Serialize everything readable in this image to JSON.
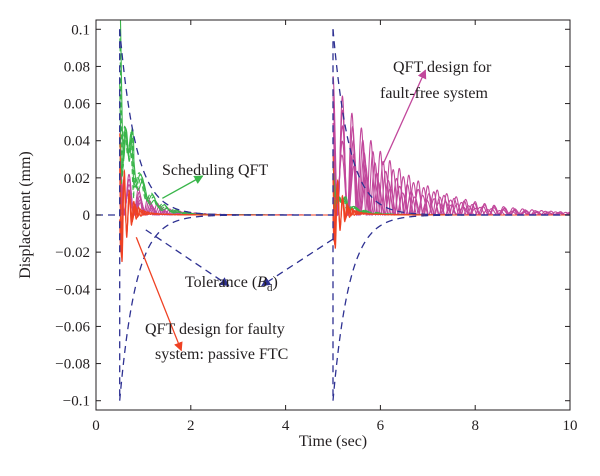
{
  "chart_data": {
    "type": "line",
    "xlabel": "Time (sec)",
    "ylabel": "Displacement (mm)",
    "xlim": [
      0,
      10
    ],
    "ylim": [
      -0.105,
      0.105
    ],
    "xticks": [
      0,
      2,
      4,
      6,
      8,
      10
    ],
    "yticks": [
      0.1,
      0.08,
      0.06,
      0.04,
      0.02,
      0,
      -0.02,
      -0.04,
      -0.06,
      -0.08,
      -0.1
    ],
    "xtick_labels": [
      "0",
      "2",
      "4",
      "6",
      "8",
      "10"
    ],
    "ytick_labels": [
      "0.1",
      "0.08",
      "0.06",
      "0.04",
      "0.02",
      "0",
      "−0.02",
      "−0.04",
      "−0.06",
      "−0.08",
      "−0.1"
    ],
    "grid": false,
    "impulse_times": [
      0.5,
      5.0
    ],
    "series": [
      {
        "role": "tolerance",
        "color": "#2e3192",
        "style": "dashed",
        "amplitude": 0.1,
        "decay_time_constant": 0.35,
        "start_times": [
          0.5,
          5.0
        ]
      },
      {
        "role": "scheduling-qft",
        "color": "#39b54a",
        "style": "solid",
        "start_times": [
          0.5,
          5.0
        ],
        "peaks": [
          0.095,
          0.02
        ],
        "decay_time_constant": 0.3
      },
      {
        "role": "passive-ftc",
        "color": "#ef4123",
        "style": "solid",
        "start_times": [
          0.5,
          5.0
        ],
        "peaks": [
          0.04,
          0.03
        ],
        "oscillation_period": 0.1,
        "decay_time_constant": 0.15
      },
      {
        "role": "fault-free",
        "color": "#c1479b",
        "style": "solid",
        "start_times": [
          0.5,
          5.0
        ],
        "peaks": [
          0.03,
          0.068
        ],
        "oscillation_period": 0.2,
        "decay_time_constant": 0.8
      }
    ],
    "annotations": [
      {
        "text": "Scheduling QFT",
        "color": "#39b54a",
        "arrow_from": [
          1.4,
          0.009
        ],
        "arrow_to": [
          2.25,
          0.021
        ]
      },
      {
        "text_before_sub": "Tolerance (",
        "subject": "B",
        "subscript": "d",
        "text_after_sub": ")",
        "arrows": [
          {
            "color": "#2e3192",
            "from": [
              1.05,
              -0.008
            ],
            "to": [
              2.8,
              -0.038
            ]
          },
          {
            "color": "#2e3192",
            "from": [
              5.0,
              -0.013
            ],
            "to": [
              3.5,
              -0.038
            ]
          }
        ]
      },
      {
        "lines": [
          "QFT design for faulty",
          "system: passive FTC"
        ],
        "color": "#ef4123",
        "arrow_from": [
          0.85,
          -0.012
        ],
        "arrow_to": [
          1.8,
          -0.073
        ]
      },
      {
        "lines": [
          "QFT design for",
          "fault-free system"
        ],
        "color": "#c1479b",
        "arrow_from": [
          6.05,
          0.027
        ],
        "arrow_to": [
          6.95,
          0.078
        ]
      }
    ]
  }
}
